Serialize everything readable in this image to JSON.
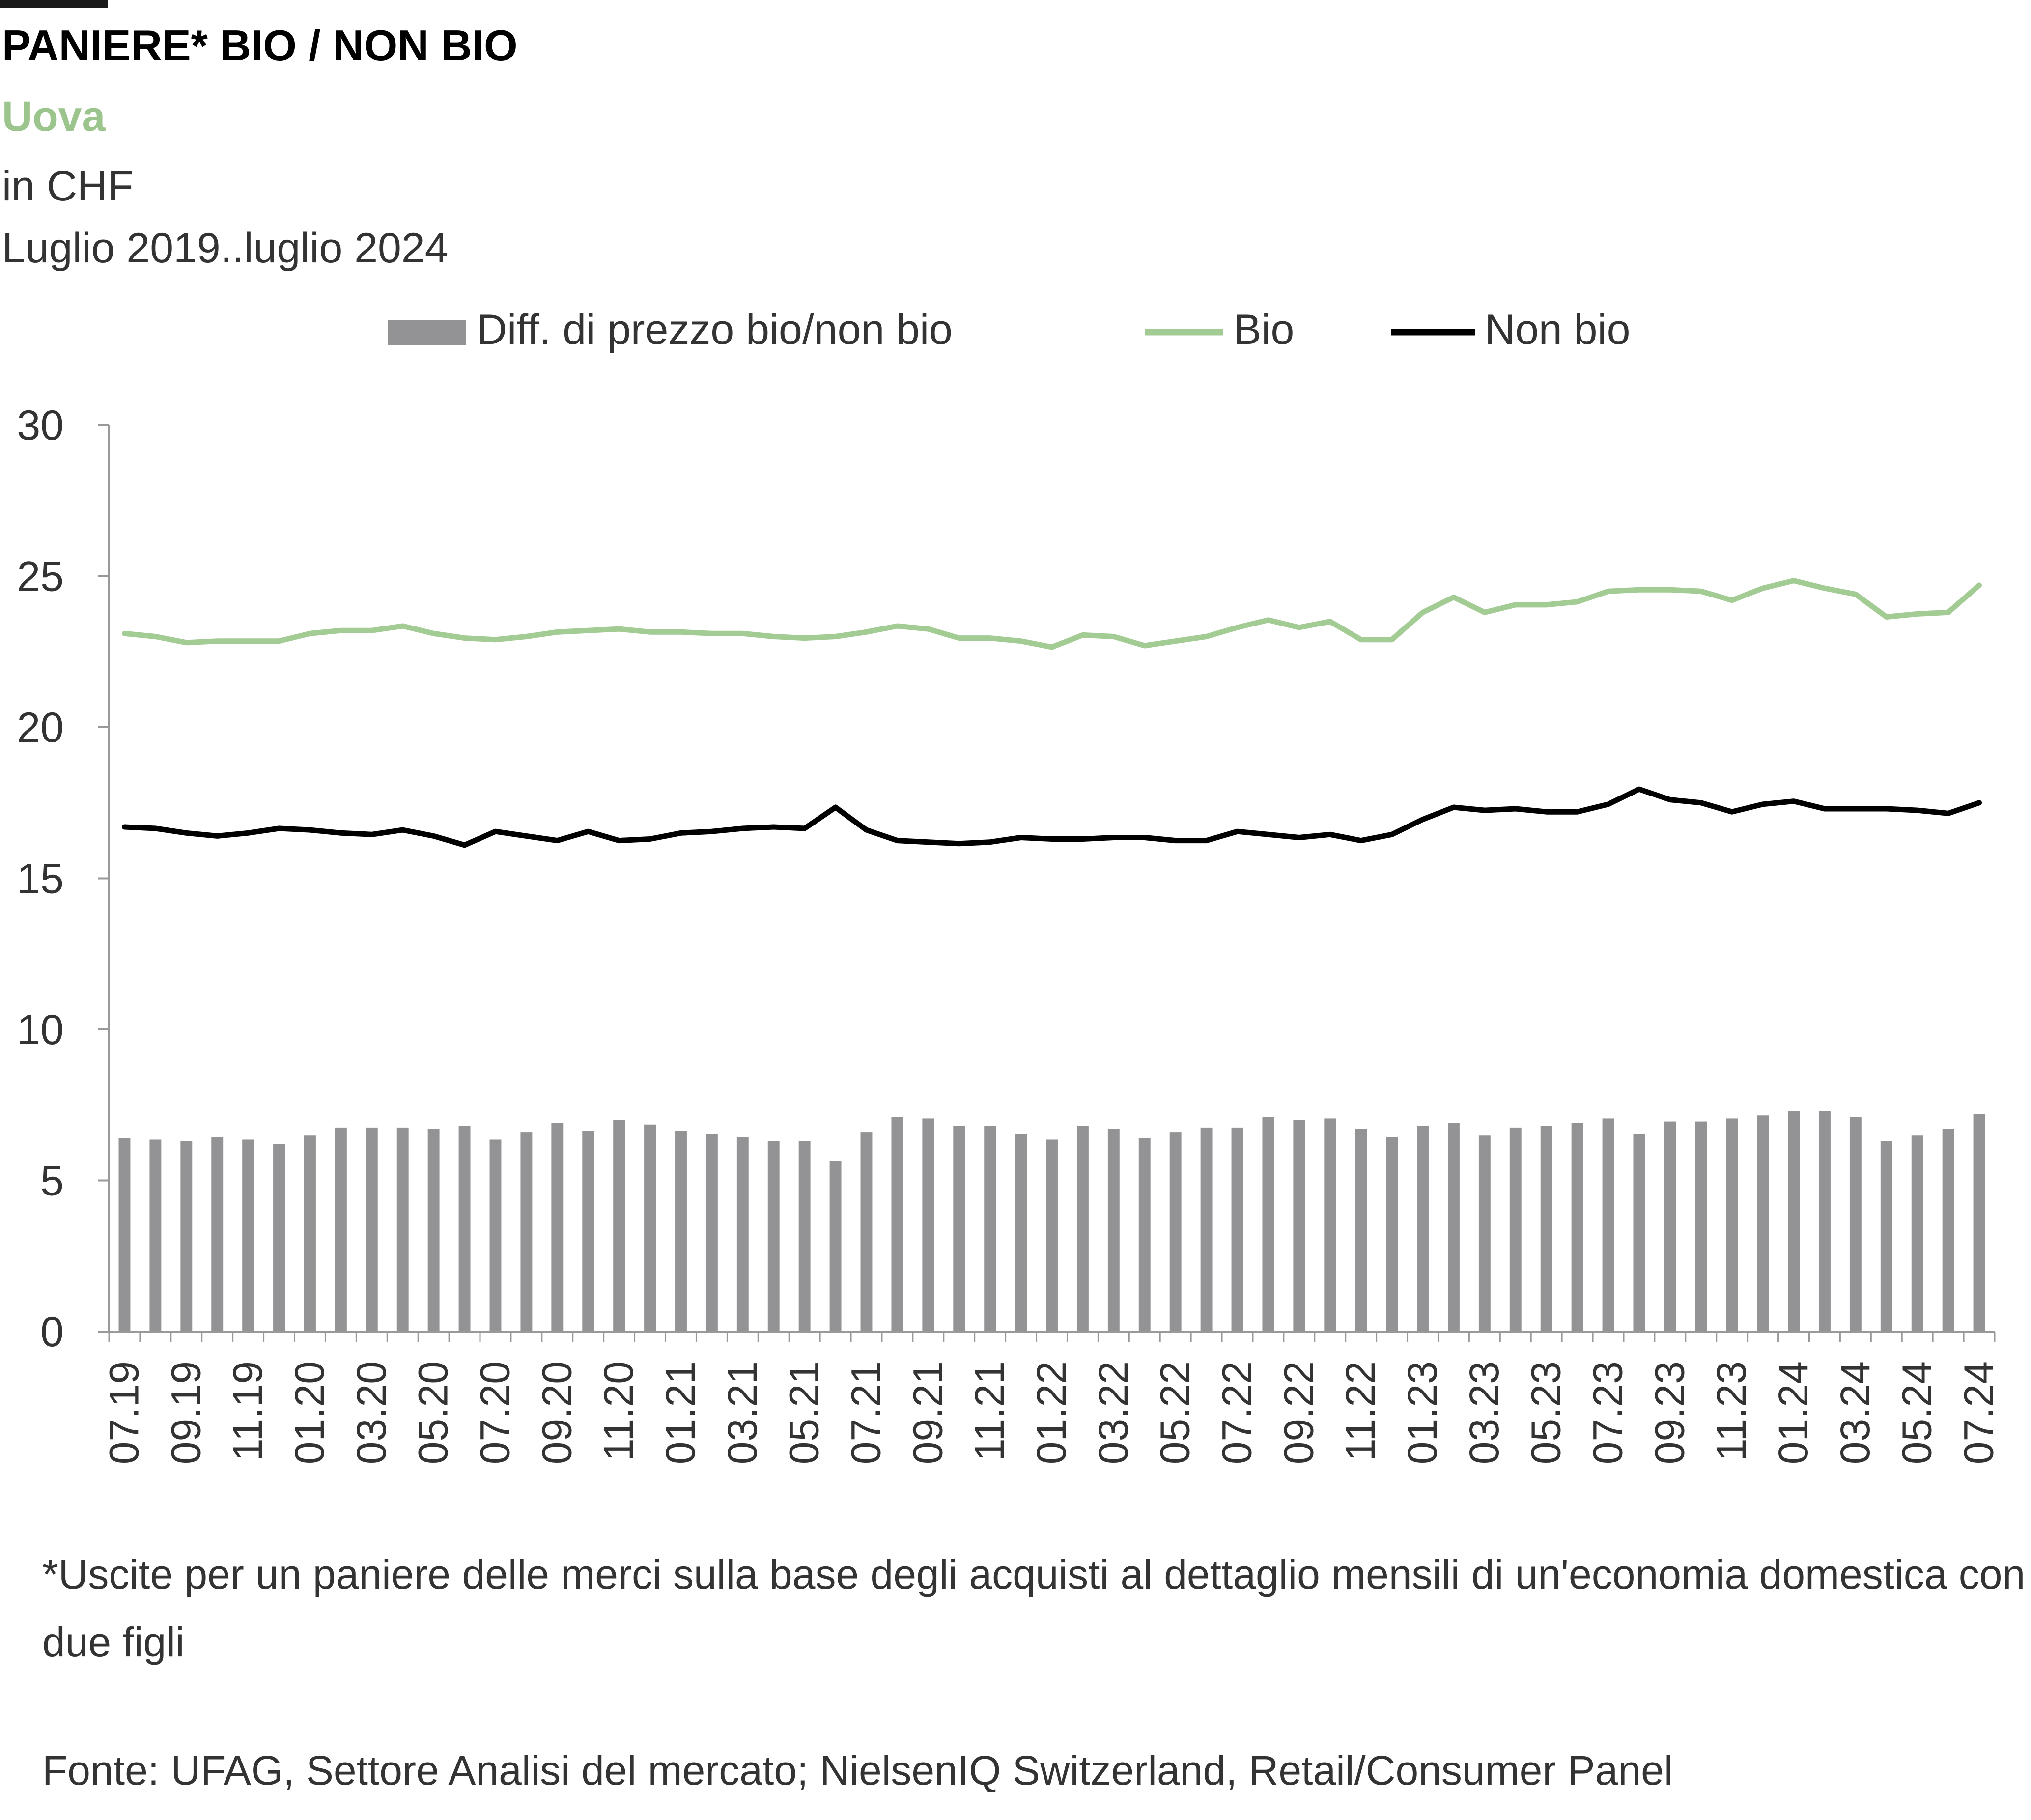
{
  "header": {
    "title": "PANIERE* BIO / NON BIO",
    "subtitle": "Uova",
    "unit": "in CHF",
    "period": "Luglio 2019..luglio 2024"
  },
  "colors": {
    "bio": "#a3cc94",
    "non_bio": "#000000",
    "diff": "#939396",
    "subtitle": "#9bc58d",
    "axis": "#999999"
  },
  "footnote": "*Uscite per un paniere delle merci sulla base degli acquisti al dettaglio mensili di un'economia domestica con due figli",
  "source": "Fonte: UFAG, Settore Analisi del mercato; NielsenIQ Switzerland, Retail/Consumer Panel",
  "chart_data": {
    "type": "bar",
    "legend_position": "top",
    "ylim": [
      0,
      30
    ],
    "y_ticks": [
      0,
      5,
      10,
      15,
      20,
      25,
      30
    ],
    "grid": false,
    "categories": [
      "07.19",
      "08.19",
      "09.19",
      "10.19",
      "11.19",
      "12.19",
      "01.20",
      "02.20",
      "03.20",
      "04.20",
      "05.20",
      "06.20",
      "07.20",
      "08.20",
      "09.20",
      "10.20",
      "11.20",
      "12.20",
      "01.21",
      "02.21",
      "03.21",
      "04.21",
      "05.21",
      "06.21",
      "07.21",
      "08.21",
      "09.21",
      "10.21",
      "11.21",
      "12.21",
      "01.22",
      "02.22",
      "03.22",
      "04.22",
      "05.22",
      "06.22",
      "07.22",
      "08.22",
      "09.22",
      "10.22",
      "11.22",
      "12.22",
      "01.23",
      "02.23",
      "03.23",
      "04.23",
      "05.23",
      "06.23",
      "07.23",
      "08.23",
      "09.23",
      "10.23",
      "11.23",
      "12.23",
      "01.24",
      "02.24",
      "03.24",
      "04.24",
      "05.24",
      "06.24",
      "07.24"
    ],
    "tick_labels": [
      "07.19",
      "09.19",
      "11.19",
      "01.20",
      "03.20",
      "05.20",
      "07.20",
      "09.20",
      "11.20",
      "01.21",
      "03.21",
      "05.21",
      "07.21",
      "09.21",
      "11.21",
      "01.22",
      "03.22",
      "05.22",
      "07.22",
      "09.22",
      "11.22",
      "01.23",
      "03.23",
      "05.23",
      "07.23",
      "09.23",
      "11.23",
      "01.24",
      "03.24",
      "05.24",
      "07.24"
    ],
    "series": [
      {
        "name": "Diff. di prezzo bio/non bio",
        "kind": "bar",
        "values": [
          6.4,
          6.35,
          6.3,
          6.45,
          6.35,
          6.2,
          6.5,
          6.75,
          6.75,
          6.75,
          6.7,
          6.8,
          6.35,
          6.6,
          6.9,
          6.65,
          7.0,
          6.85,
          6.65,
          6.55,
          6.45,
          6.3,
          6.3,
          5.65,
          6.6,
          7.1,
          7.05,
          6.8,
          6.8,
          6.55,
          6.35,
          6.8,
          6.7,
          6.4,
          6.6,
          6.75,
          6.75,
          7.1,
          7.0,
          7.05,
          6.7,
          6.45,
          6.8,
          6.9,
          6.5,
          6.75,
          6.8,
          6.9,
          7.05,
          6.55,
          6.95,
          6.95,
          7.05,
          7.15,
          7.3,
          7.3,
          7.1,
          6.3,
          6.5,
          6.7,
          7.2
        ]
      },
      {
        "name": "Bio",
        "kind": "line",
        "values": [
          23.1,
          23.0,
          22.8,
          22.85,
          22.85,
          22.85,
          23.1,
          23.2,
          23.2,
          23.35,
          23.1,
          22.95,
          22.9,
          23.0,
          23.15,
          23.2,
          23.25,
          23.15,
          23.15,
          23.1,
          23.1,
          23.0,
          22.95,
          23.0,
          23.15,
          23.35,
          23.25,
          22.95,
          22.95,
          22.85,
          22.65,
          23.05,
          23.0,
          22.7,
          22.85,
          23.0,
          23.3,
          23.55,
          23.3,
          23.5,
          22.9,
          22.9,
          23.8,
          24.3,
          23.8,
          24.05,
          24.05,
          24.15,
          24.5,
          24.55,
          24.55,
          24.5,
          24.2,
          24.6,
          24.85,
          24.6,
          24.4,
          23.65,
          23.75,
          23.8,
          24.7
        ]
      },
      {
        "name": "Non bio",
        "kind": "line",
        "values": [
          16.7,
          16.65,
          16.5,
          16.4,
          16.5,
          16.65,
          16.6,
          16.5,
          16.45,
          16.6,
          16.4,
          16.1,
          16.55,
          16.4,
          16.25,
          16.55,
          16.25,
          16.3,
          16.5,
          16.55,
          16.65,
          16.7,
          16.65,
          17.35,
          16.6,
          16.25,
          16.2,
          16.15,
          16.2,
          16.35,
          16.3,
          16.3,
          16.35,
          16.35,
          16.25,
          16.25,
          16.55,
          16.45,
          16.35,
          16.45,
          16.25,
          16.45,
          16.95,
          17.35,
          17.25,
          17.3,
          17.2,
          17.2,
          17.45,
          17.95,
          17.6,
          17.5,
          17.2,
          17.45,
          17.55,
          17.3,
          17.3,
          17.3,
          17.25,
          17.15,
          17.5
        ]
      }
    ]
  }
}
